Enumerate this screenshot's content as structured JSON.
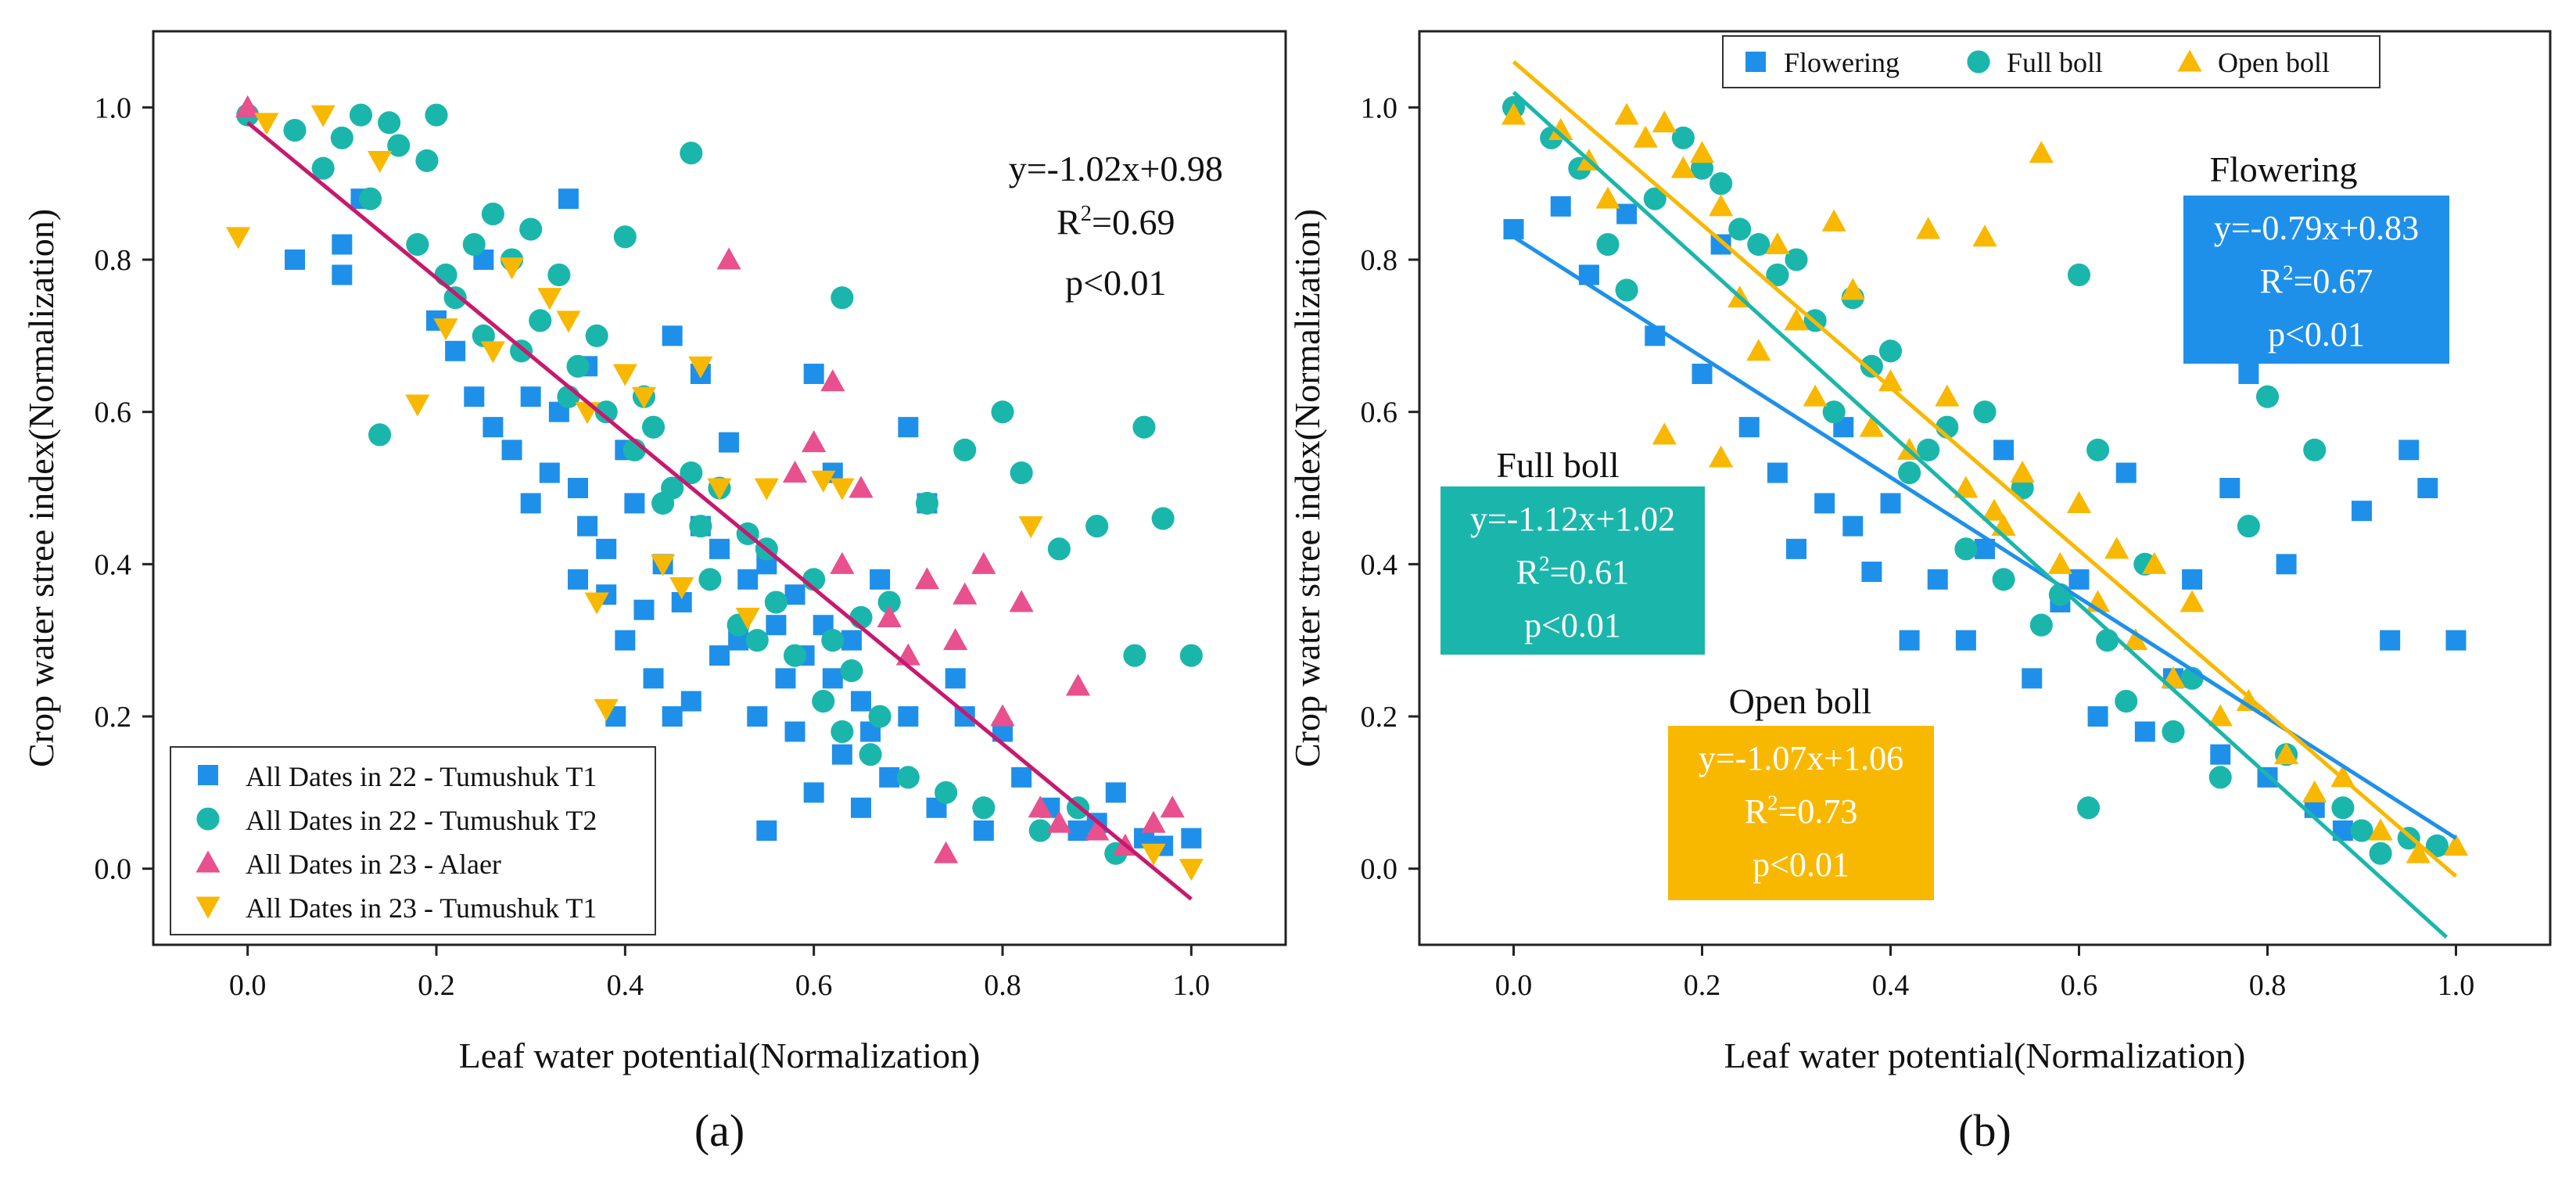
{
  "chart_data": [
    {
      "type": "scatter",
      "panel_label": "(a)",
      "xlabel": "Leaf water potential(Normalization)",
      "ylabel": "Crop water stree index(Normalization)",
      "xlim": [
        -0.1,
        1.1
      ],
      "ylim": [
        -0.1,
        1.1
      ],
      "xticks": [
        "0.0",
        "0.2",
        "0.4",
        "0.6",
        "0.8",
        "1.0"
      ],
      "yticks": [
        "0.0",
        "0.2",
        "0.4",
        "0.6",
        "0.8",
        "1.0"
      ],
      "legend_position": "bottom-left",
      "series": [
        {
          "name": "All Dates in 22 - Tumushuk T1",
          "marker": "square",
          "color": "#1e90ea",
          "x": [
            0.05,
            0.1,
            0.1,
            0.12,
            0.2,
            0.22,
            0.24,
            0.25,
            0.26,
            0.28,
            0.3,
            0.3,
            0.32,
            0.33,
            0.34,
            0.35,
            0.35,
            0.36,
            0.36,
            0.38,
            0.38,
            0.39,
            0.4,
            0.4,
            0.41,
            0.42,
            0.43,
            0.44,
            0.45,
            0.45,
            0.46,
            0.47,
            0.48,
            0.48,
            0.5,
            0.5,
            0.51,
            0.52,
            0.53,
            0.54,
            0.55,
            0.55,
            0.56,
            0.57,
            0.58,
            0.58,
            0.59,
            0.6,
            0.6,
            0.61,
            0.62,
            0.62,
            0.63,
            0.64,
            0.65,
            0.65,
            0.66,
            0.67,
            0.68,
            0.7,
            0.7,
            0.72,
            0.73,
            0.75,
            0.76,
            0.78,
            0.8,
            0.82,
            0.85,
            0.88,
            0.9,
            0.92,
            0.95,
            0.97,
            1.0
          ],
          "y": [
            0.8,
            0.82,
            0.78,
            0.88,
            0.72,
            0.68,
            0.62,
            0.8,
            0.58,
            0.55,
            0.62,
            0.48,
            0.52,
            0.6,
            0.88,
            0.5,
            0.38,
            0.66,
            0.45,
            0.42,
            0.36,
            0.2,
            0.55,
            0.3,
            0.48,
            0.34,
            0.25,
            0.4,
            0.7,
            0.2,
            0.35,
            0.22,
            0.45,
            0.65,
            0.28,
            0.42,
            0.56,
            0.3,
            0.38,
            0.2,
            0.4,
            0.05,
            0.32,
            0.25,
            0.36,
            0.18,
            0.28,
            0.65,
            0.1,
            0.32,
            0.25,
            0.52,
            0.15,
            0.3,
            0.22,
            0.08,
            0.18,
            0.38,
            0.12,
            0.58,
            0.2,
            0.48,
            0.08,
            0.25,
            0.2,
            0.05,
            0.18,
            0.12,
            0.08,
            0.05,
            0.06,
            0.1,
            0.04,
            0.03,
            0.04
          ]
        },
        {
          "name": "All Dates in 22 - Tumushuk T2",
          "marker": "circle",
          "color": "#1bb6ab",
          "x": [
            0.0,
            0.05,
            0.08,
            0.1,
            0.12,
            0.13,
            0.15,
            0.16,
            0.18,
            0.19,
            0.2,
            0.21,
            0.22,
            0.24,
            0.25,
            0.26,
            0.28,
            0.29,
            0.3,
            0.31,
            0.33,
            0.34,
            0.35,
            0.37,
            0.38,
            0.4,
            0.41,
            0.42,
            0.43,
            0.44,
            0.45,
            0.47,
            0.48,
            0.49,
            0.5,
            0.52,
            0.53,
            0.54,
            0.55,
            0.56,
            0.58,
            0.6,
            0.61,
            0.62,
            0.63,
            0.64,
            0.65,
            0.66,
            0.67,
            0.68,
            0.7,
            0.72,
            0.74,
            0.76,
            0.78,
            0.8,
            0.82,
            0.84,
            0.86,
            0.88,
            0.9,
            0.92,
            0.94,
            0.95,
            0.97,
            1.0,
            0.14,
            0.47,
            0.63
          ],
          "y": [
            0.99,
            0.97,
            0.92,
            0.96,
            0.99,
            0.88,
            0.98,
            0.95,
            0.82,
            0.93,
            0.99,
            0.78,
            0.75,
            0.82,
            0.7,
            0.86,
            0.8,
            0.68,
            0.84,
            0.72,
            0.78,
            0.62,
            0.66,
            0.7,
            0.6,
            0.83,
            0.55,
            0.62,
            0.58,
            0.48,
            0.5,
            0.52,
            0.45,
            0.38,
            0.5,
            0.32,
            0.44,
            0.3,
            0.42,
            0.35,
            0.28,
            0.38,
            0.22,
            0.3,
            0.18,
            0.26,
            0.33,
            0.15,
            0.2,
            0.35,
            0.12,
            0.48,
            0.1,
            0.55,
            0.08,
            0.6,
            0.52,
            0.05,
            0.42,
            0.08,
            0.45,
            0.02,
            0.28,
            0.58,
            0.46,
            0.28,
            0.57,
            0.94,
            0.75
          ]
        },
        {
          "name": "All Dates in 23 - Alaer",
          "marker": "triangle-up",
          "color": "#e8508e",
          "x": [
            0.0,
            0.51,
            0.58,
            0.6,
            0.62,
            0.65,
            0.68,
            0.7,
            0.72,
            0.75,
            0.76,
            0.78,
            0.8,
            0.82,
            0.84,
            0.86,
            0.88,
            0.9,
            0.93,
            0.96,
            0.98,
            0.74,
            0.63
          ],
          "y": [
            1.0,
            0.8,
            0.52,
            0.56,
            0.64,
            0.5,
            0.33,
            0.28,
            0.38,
            0.3,
            0.36,
            0.4,
            0.2,
            0.35,
            0.08,
            0.06,
            0.24,
            0.05,
            0.03,
            0.06,
            0.08,
            0.02,
            0.4
          ]
        },
        {
          "name": "All Dates in 23 - Tumushuk T1",
          "marker": "triangle-down",
          "color": "#f9b800",
          "x": [
            -0.01,
            0.02,
            0.08,
            0.14,
            0.18,
            0.21,
            0.26,
            0.28,
            0.32,
            0.34,
            0.36,
            0.37,
            0.38,
            0.4,
            0.42,
            0.44,
            0.46,
            0.48,
            0.5,
            0.53,
            0.55,
            0.61,
            0.63,
            0.83,
            0.96,
            1.0
          ],
          "y": [
            0.83,
            0.98,
            0.99,
            0.93,
            0.61,
            0.71,
            0.68,
            0.79,
            0.75,
            0.72,
            0.6,
            0.35,
            0.21,
            0.65,
            0.62,
            0.4,
            0.37,
            0.66,
            0.5,
            0.33,
            0.5,
            0.51,
            0.5,
            0.45,
            0.02,
            0.0
          ]
        }
      ],
      "fit_lines": [
        {
          "name": "overall",
          "color": "#c8196e",
          "x": [
            0.0,
            1.0
          ],
          "y": [
            0.98,
            -0.04
          ]
        }
      ],
      "annotations": [
        {
          "text": "y=-1.02x+0.98",
          "x": 0.92,
          "y": 0.92
        },
        {
          "text": "R²=0.69",
          "x": 0.92,
          "y": 0.85
        },
        {
          "text": "p<0.01",
          "x": 0.92,
          "y": 0.77
        }
      ]
    },
    {
      "type": "scatter",
      "panel_label": "(b)",
      "xlabel": "Leaf water potential(Normalization)",
      "ylabel": "Crop water stree index(Normalization)",
      "xlim": [
        -0.1,
        1.1
      ],
      "ylim": [
        -0.1,
        1.1
      ],
      "xticks": [
        "0.0",
        "0.2",
        "0.4",
        "0.6",
        "0.8",
        "1.0"
      ],
      "yticks": [
        "0.0",
        "0.2",
        "0.4",
        "0.6",
        "0.8",
        "1.0"
      ],
      "legend_position": "top",
      "series": [
        {
          "name": "Flowering",
          "marker": "square",
          "color": "#1e90ea",
          "x": [
            0.0,
            0.05,
            0.08,
            0.12,
            0.15,
            0.2,
            0.22,
            0.25,
            0.28,
            0.3,
            0.33,
            0.35,
            0.36,
            0.38,
            0.4,
            0.42,
            0.45,
            0.48,
            0.5,
            0.52,
            0.55,
            0.58,
            0.6,
            0.62,
            0.65,
            0.67,
            0.7,
            0.72,
            0.75,
            0.76,
            0.78,
            0.8,
            0.82,
            0.85,
            0.88,
            0.9,
            0.93,
            0.95,
            0.97,
            1.0
          ],
          "y": [
            0.84,
            0.87,
            0.78,
            0.86,
            0.7,
            0.65,
            0.82,
            0.58,
            0.52,
            0.42,
            0.48,
            0.58,
            0.45,
            0.39,
            0.48,
            0.3,
            0.38,
            0.3,
            0.42,
            0.55,
            0.25,
            0.35,
            0.38,
            0.2,
            0.52,
            0.18,
            0.25,
            0.38,
            0.15,
            0.5,
            0.65,
            0.12,
            0.4,
            0.08,
            0.05,
            0.47,
            0.3,
            0.55,
            0.5,
            0.3
          ]
        },
        {
          "name": "Full boll",
          "marker": "circle",
          "color": "#1bb6ab",
          "x": [
            0.0,
            0.04,
            0.07,
            0.1,
            0.12,
            0.15,
            0.18,
            0.2,
            0.22,
            0.24,
            0.26,
            0.28,
            0.3,
            0.32,
            0.34,
            0.36,
            0.38,
            0.4,
            0.42,
            0.44,
            0.46,
            0.48,
            0.5,
            0.52,
            0.54,
            0.56,
            0.58,
            0.6,
            0.61,
            0.62,
            0.63,
            0.65,
            0.67,
            0.7,
            0.72,
            0.75,
            0.78,
            0.8,
            0.82,
            0.85,
            0.88,
            0.9,
            0.92,
            0.95,
            0.98
          ],
          "y": [
            1.0,
            0.96,
            0.92,
            0.82,
            0.76,
            0.88,
            0.96,
            0.92,
            0.9,
            0.84,
            0.82,
            0.78,
            0.8,
            0.72,
            0.6,
            0.75,
            0.66,
            0.68,
            0.52,
            0.55,
            0.58,
            0.42,
            0.6,
            0.38,
            0.5,
            0.32,
            0.36,
            0.78,
            0.08,
            0.55,
            0.3,
            0.22,
            0.4,
            0.18,
            0.25,
            0.12,
            0.45,
            0.62,
            0.15,
            0.55,
            0.08,
            0.05,
            0.02,
            0.04,
            0.03
          ]
        },
        {
          "name": "Open boll",
          "marker": "triangle-up",
          "color": "#f9b800",
          "x": [
            0.0,
            0.05,
            0.08,
            0.1,
            0.12,
            0.14,
            0.16,
            0.18,
            0.2,
            0.22,
            0.24,
            0.26,
            0.28,
            0.3,
            0.32,
            0.34,
            0.36,
            0.38,
            0.4,
            0.42,
            0.44,
            0.46,
            0.48,
            0.5,
            0.52,
            0.54,
            0.56,
            0.58,
            0.6,
            0.62,
            0.64,
            0.66,
            0.68,
            0.7,
            0.72,
            0.75,
            0.78,
            0.82,
            0.85,
            0.88,
            0.92,
            0.96,
            1.0,
            0.16,
            0.22,
            0.51
          ],
          "y": [
            0.99,
            0.97,
            0.93,
            0.88,
            0.99,
            0.96,
            0.98,
            0.92,
            0.94,
            0.87,
            0.75,
            0.68,
            0.82,
            0.72,
            0.62,
            0.85,
            0.76,
            0.58,
            0.64,
            0.55,
            0.84,
            0.62,
            0.5,
            0.83,
            0.45,
            0.52,
            0.94,
            0.4,
            0.48,
            0.35,
            0.42,
            0.3,
            0.4,
            0.25,
            0.35,
            0.2,
            0.22,
            0.15,
            0.1,
            0.12,
            0.05,
            0.02,
            0.03,
            0.57,
            0.54,
            0.47
          ]
        }
      ],
      "fit_lines": [
        {
          "name": "Flowering fit",
          "color": "#1e90ea",
          "x": [
            0.0,
            1.0
          ],
          "y": [
            0.83,
            0.04
          ]
        },
        {
          "name": "Full boll fit",
          "color": "#1bb6ab",
          "x": [
            0.0,
            0.99
          ],
          "y": [
            1.02,
            -0.09
          ]
        },
        {
          "name": "Open boll fit",
          "color": "#f9b800",
          "x": [
            0.0,
            1.0
          ],
          "y": [
            1.06,
            -0.01
          ]
        }
      ],
      "stat_boxes": [
        {
          "group": "Flowering",
          "title": "Flowering",
          "equation": "y=-0.79x+0.83",
          "r2": "R²=0.67",
          "p": "p<0.01",
          "color": "#1e90ea",
          "position": "upper-right"
        },
        {
          "group": "Full boll",
          "title": "Full boll",
          "equation": "y=-1.12x+1.02",
          "r2": "R²=0.61",
          "p": "p<0.01",
          "color": "#1bb6ab",
          "position": "middle-left"
        },
        {
          "group": "Open boll",
          "title": "Open boll",
          "equation": "y=-1.07x+1.06",
          "r2": "R²=0.73",
          "p": "p<0.01",
          "color": "#f9b800",
          "position": "lower-center"
        }
      ]
    }
  ]
}
